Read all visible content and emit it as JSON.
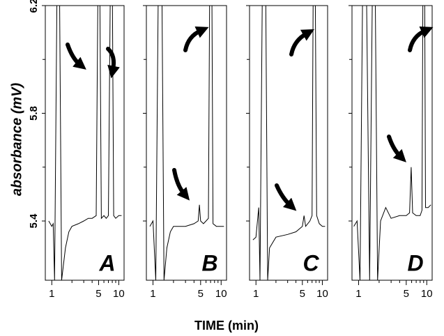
{
  "ylabel": "absorbance (mV)",
  "xlabel": "TIME (min)",
  "chart_data": [
    {
      "type": "line",
      "label": "A",
      "xscale": "log",
      "xlim": [
        0.8,
        12
      ],
      "ylim": [
        5.18,
        6.2
      ],
      "yticks": [
        5.4,
        5.8,
        6.2
      ],
      "yminorticks": [
        5.6,
        6.0
      ],
      "show_ytick_labels": true,
      "xticks": [
        1,
        5,
        10
      ],
      "xminorticks": [
        2,
        3,
        4,
        6,
        7,
        8,
        9
      ],
      "x": [
        0.9,
        1.0,
        1.05,
        1.1,
        1.2,
        1.3,
        1.4,
        1.6,
        1.8,
        2,
        2.5,
        3,
        3.5,
        4,
        4.6,
        4.9,
        5.2,
        5.5,
        6,
        6.5,
        7,
        7.5,
        8.0,
        8.4,
        9,
        10,
        11
      ],
      "series": [
        {
          "color": "#000000",
          "values": [
            5.4,
            5.38,
            5.39,
            5.18,
            6.3,
            6.3,
            5.18,
            5.3,
            5.36,
            5.38,
            5.39,
            5.4,
            5.41,
            5.41,
            5.42,
            6.3,
            6.3,
            5.41,
            5.42,
            5.41,
            5.42,
            6.3,
            6.3,
            5.42,
            5.41,
            5.42,
            5.42
          ]
        }
      ]
    },
    {
      "type": "line",
      "label": "B",
      "xscale": "log",
      "xlim": [
        0.8,
        12
      ],
      "ylim": [
        5.18,
        6.2
      ],
      "yticks": [
        5.4,
        5.8,
        6.2
      ],
      "yminorticks": [
        5.6,
        6.0
      ],
      "show_ytick_labels": false,
      "xticks": [
        1,
        5,
        10
      ],
      "xminorticks": [
        2,
        3,
        4,
        6,
        7,
        8,
        9
      ],
      "x": [
        0.9,
        1.0,
        1.1,
        1.2,
        1.35,
        1.45,
        1.6,
        1.8,
        2,
        3,
        4,
        4.6,
        4.8,
        5.0,
        5.5,
        6,
        6.5,
        6.8,
        7.3,
        7.6,
        8.5,
        10,
        11
      ],
      "series": [
        {
          "color": "#000000",
          "values": [
            5.38,
            5.4,
            5.18,
            6.3,
            6.3,
            5.18,
            5.3,
            5.36,
            5.38,
            5.38,
            5.39,
            5.4,
            5.46,
            5.4,
            5.39,
            5.4,
            5.41,
            6.3,
            6.3,
            5.39,
            5.38,
            5.38,
            5.38
          ]
        }
      ]
    },
    {
      "type": "line",
      "label": "C",
      "xscale": "log",
      "xlim": [
        0.8,
        12
      ],
      "ylim": [
        5.18,
        6.2
      ],
      "yticks": [
        5.4,
        5.8,
        6.2
      ],
      "yminorticks": [
        5.6,
        6.0
      ],
      "show_ytick_labels": false,
      "xticks": [
        1,
        5,
        10
      ],
      "xminorticks": [
        2,
        3,
        4,
        6,
        7,
        8,
        9
      ],
      "x": [
        0.9,
        1.0,
        1.1,
        1.15,
        1.25,
        1.4,
        1.5,
        1.6,
        2,
        3,
        4,
        5,
        5.3,
        5.6,
        6.5,
        7,
        7.3,
        7.8,
        8.2,
        9,
        10,
        11
      ],
      "series": [
        {
          "color": "#000000",
          "values": [
            5.33,
            5.34,
            5.45,
            5.18,
            6.3,
            6.3,
            5.18,
            5.3,
            5.34,
            5.35,
            5.36,
            5.38,
            5.42,
            5.38,
            5.4,
            5.42,
            6.3,
            6.3,
            5.42,
            5.39,
            5.38,
            5.38
          ]
        }
      ]
    },
    {
      "type": "line",
      "label": "D",
      "xscale": "log",
      "xlim": [
        0.8,
        12
      ],
      "ylim": [
        5.18,
        6.2
      ],
      "yticks": [
        5.4,
        5.8,
        6.2
      ],
      "yminorticks": [
        5.6,
        6.0
      ],
      "show_ytick_labels": false,
      "xticks": [
        1,
        5,
        10
      ],
      "xminorticks": [
        2,
        3,
        4,
        6,
        7,
        8,
        9
      ],
      "x": [
        0.85,
        0.95,
        1.05,
        1.15,
        1.3,
        1.45,
        1.6,
        1.75,
        1.9,
        2.1,
        2.5,
        3,
        4,
        5,
        5.6,
        5.9,
        6.2,
        7,
        8,
        8.5,
        8.8,
        9.3,
        9.6,
        10.5,
        11.5
      ],
      "series": [
        {
          "color": "#000000",
          "values": [
            5.38,
            5.4,
            5.18,
            6.3,
            6.3,
            5.18,
            6.3,
            6.3,
            5.18,
            5.4,
            5.45,
            5.41,
            5.42,
            5.42,
            5.43,
            5.6,
            5.43,
            5.42,
            5.42,
            5.44,
            6.3,
            6.3,
            5.45,
            5.45,
            5.46
          ]
        }
      ]
    }
  ]
}
